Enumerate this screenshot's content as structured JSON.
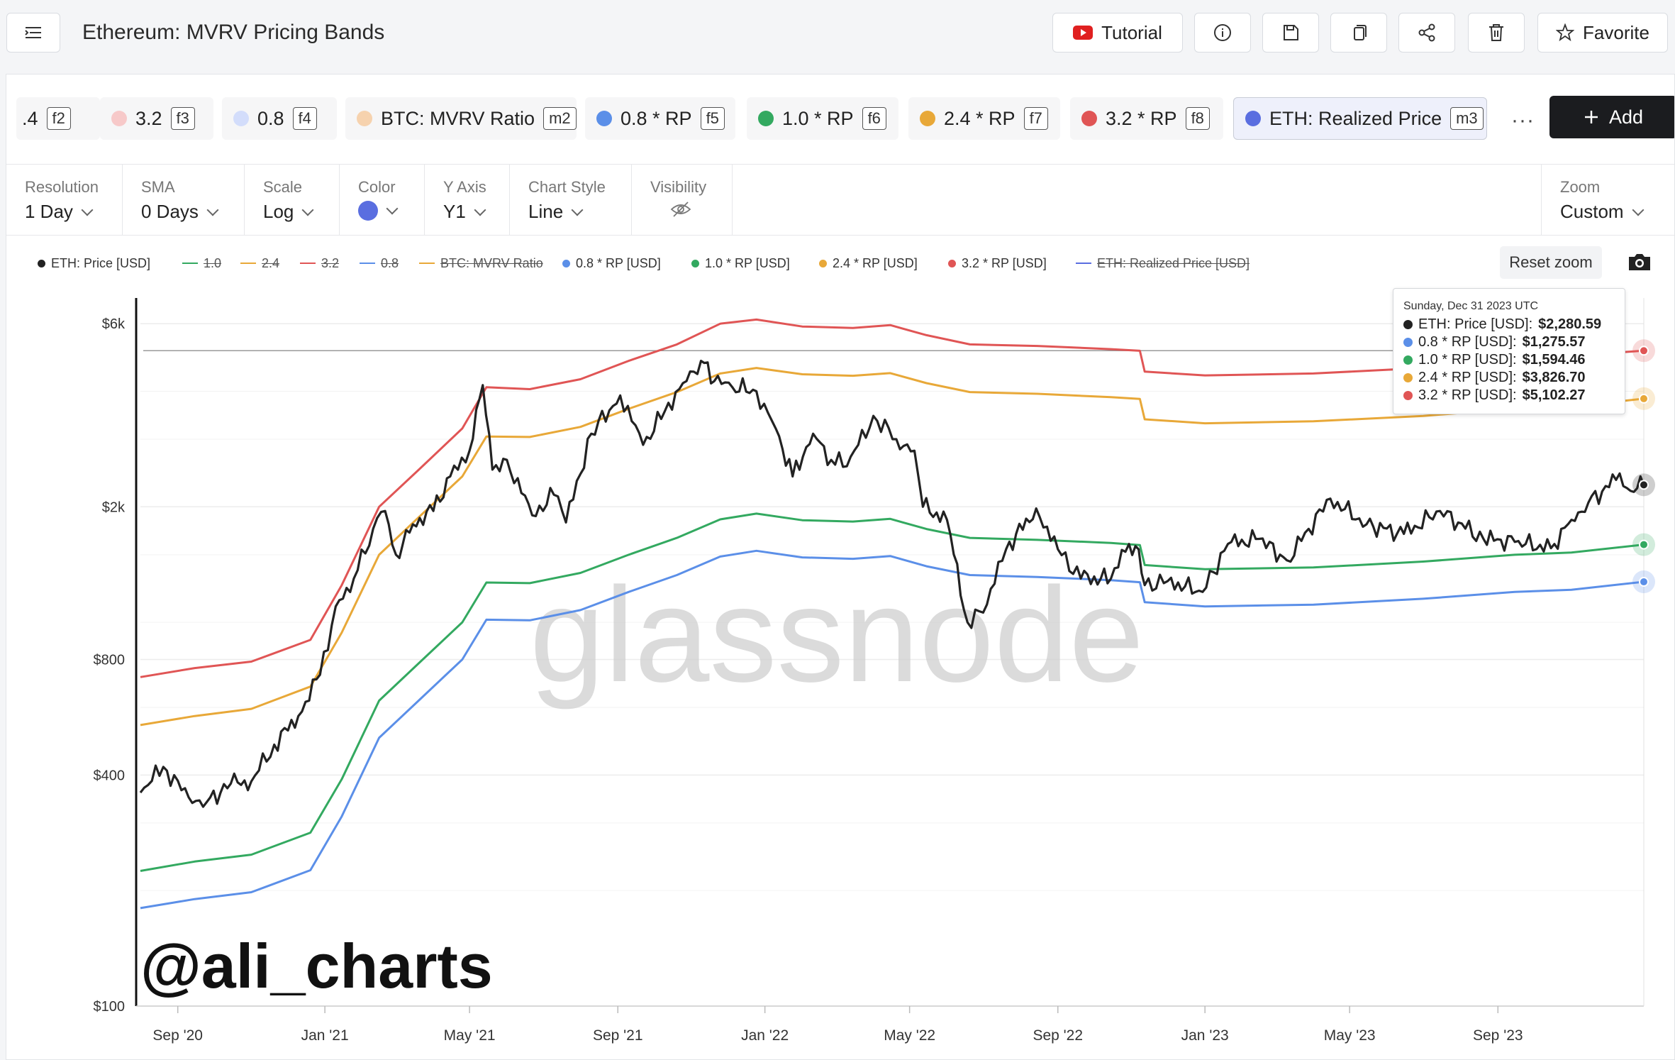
{
  "header": {
    "title": "Ethereum: MVRV Pricing Bands",
    "tutorial_label": "Tutorial",
    "favorite_label": "Favorite"
  },
  "metrics": [
    {
      "label": ".4",
      "key": "f2",
      "color": "#fbe2e2"
    },
    {
      "label": "3.2",
      "key": "f3",
      "color": "#f7c9c9"
    },
    {
      "label": "0.8",
      "key": "f4",
      "color": "#d3ddfb"
    },
    {
      "label": "BTC: MVRV Ratio",
      "key": "m2",
      "color": "#f6d2ae"
    },
    {
      "label": "0.8 * RP",
      "key": "f5",
      "color": "#5b8fe8"
    },
    {
      "label": "1.0 * RP",
      "key": "f6",
      "color": "#33a960"
    },
    {
      "label": "2.4 * RP",
      "key": "f7",
      "color": "#e8a838"
    },
    {
      "label": "3.2 * RP",
      "key": "f8",
      "color": "#e05555"
    },
    {
      "label": "ETH: Realized Price",
      "key": "m3",
      "color": "#5a6ee0"
    }
  ],
  "more_label": "···",
  "add_label": "Add",
  "controls": [
    {
      "label": "Resolution",
      "value": "1 Day"
    },
    {
      "label": "SMA",
      "value": "0 Days"
    },
    {
      "label": "Scale",
      "value": "Log"
    },
    {
      "label": "Color",
      "value": ""
    },
    {
      "label": "Y Axis",
      "value": "Y1"
    },
    {
      "label": "Chart Style",
      "value": "Line"
    },
    {
      "label": "Visibility",
      "value": ""
    },
    {
      "label": "Zoom",
      "value": "Custom"
    }
  ],
  "color_swatch": "#5a6ee0",
  "reset_zoom_label": "Reset zoom",
  "legend": [
    {
      "label": "ETH: Price [USD]",
      "color": "#222222",
      "active": true
    },
    {
      "label": "1.0",
      "color": "#33a960",
      "active": false
    },
    {
      "label": "2.4",
      "color": "#e8a838",
      "active": false
    },
    {
      "label": "3.2",
      "color": "#e05555",
      "active": false
    },
    {
      "label": "0.8",
      "color": "#5b8fe8",
      "active": false
    },
    {
      "label": "BTC: MVRV Ratio",
      "color": "#e8a838",
      "active": false
    },
    {
      "label": "0.8 * RP [USD]",
      "color": "#5b8fe8",
      "active": true
    },
    {
      "label": "1.0 * RP [USD]",
      "color": "#33a960",
      "active": true
    },
    {
      "label": "2.4 * RP [USD]",
      "color": "#e8a838",
      "active": true
    },
    {
      "label": "3.2 * RP [USD]",
      "color": "#e05555",
      "active": true
    },
    {
      "label": "ETH: Realized Price [USD]",
      "color": "#5a6ee0",
      "active": false
    }
  ],
  "tooltip": {
    "date": "Sunday, Dec 31 2023 UTC",
    "rows": [
      {
        "label": "ETH: Price [USD]: ",
        "value": "$2,280.59",
        "color": "#222222"
      },
      {
        "label": "0.8 * RP [USD]: ",
        "value": "$1,275.57",
        "color": "#5b8fe8"
      },
      {
        "label": "1.0 * RP [USD]: ",
        "value": "$1,594.46",
        "color": "#33a960"
      },
      {
        "label": "2.4 * RP [USD]: ",
        "value": "$3,826.70",
        "color": "#e8a838"
      },
      {
        "label": "3.2 * RP [USD]: ",
        "value": "$5,102.27",
        "color": "#e05555"
      }
    ]
  },
  "watermark": "glassnode",
  "overlay_text": "@ali_charts",
  "chart_data": {
    "type": "line",
    "title": "Ethereum: MVRV Pricing Bands",
    "yscale": "log",
    "ylim": [
      100,
      7000
    ],
    "xlim": [
      "2020-08-01",
      "2023-12-31"
    ],
    "y_ticks": [
      {
        "v": 100,
        "label": "$100"
      },
      {
        "v": 400,
        "label": "$400"
      },
      {
        "v": 800,
        "label": "$800"
      },
      {
        "v": 2000,
        "label": "$2k"
      },
      {
        "v": 6000,
        "label": "$6k"
      }
    ],
    "x_ticks": [
      {
        "date": "2020-09-01",
        "label": "Sep '20"
      },
      {
        "date": "2021-01-01",
        "label": "Jan '21"
      },
      {
        "date": "2021-05-01",
        "label": "May '21"
      },
      {
        "date": "2021-09-01",
        "label": "Sep '21"
      },
      {
        "date": "2022-01-01",
        "label": "Jan '22"
      },
      {
        "date": "2022-05-01",
        "label": "May '22"
      },
      {
        "date": "2022-09-01",
        "label": "Sep '22"
      },
      {
        "date": "2023-01-01",
        "label": "Jan '23"
      },
      {
        "date": "2023-05-01",
        "label": "May '23"
      },
      {
        "date": "2023-09-01",
        "label": "Sep '23"
      }
    ],
    "reference_line": 5102,
    "series": [
      {
        "name": "3.2 * RP [USD]",
        "color": "#e05555",
        "points": [
          [
            "2020-08-01",
            720
          ],
          [
            "2020-09-15",
            760
          ],
          [
            "2020-11-01",
            790
          ],
          [
            "2020-12-20",
            900
          ],
          [
            "2021-01-15",
            1250
          ],
          [
            "2021-02-15",
            2000
          ],
          [
            "2021-03-20",
            2500
          ],
          [
            "2021-04-25",
            3200
          ],
          [
            "2021-05-15",
            4100
          ],
          [
            "2021-06-20",
            4050
          ],
          [
            "2021-08-01",
            4300
          ],
          [
            "2021-09-10",
            4800
          ],
          [
            "2021-10-20",
            5300
          ],
          [
            "2021-11-25",
            6000
          ],
          [
            "2021-12-25",
            6150
          ],
          [
            "2022-02-01",
            5900
          ],
          [
            "2022-03-15",
            5850
          ],
          [
            "2022-04-15",
            5950
          ],
          [
            "2022-05-15",
            5600
          ],
          [
            "2022-06-20",
            5300
          ],
          [
            "2022-08-15",
            5250
          ],
          [
            "2022-10-15",
            5150
          ],
          [
            "2022-11-08",
            5100
          ],
          [
            "2022-11-12",
            4500
          ],
          [
            "2023-01-01",
            4400
          ],
          [
            "2023-04-01",
            4450
          ],
          [
            "2023-07-01",
            4600
          ],
          [
            "2023-09-15",
            4900
          ],
          [
            "2023-11-01",
            4950
          ],
          [
            "2023-12-31",
            5102
          ]
        ]
      },
      {
        "name": "2.4 * RP [USD]",
        "color": "#e8a838",
        "points": [
          [
            "2020-08-01",
            540
          ],
          [
            "2020-09-15",
            570
          ],
          [
            "2020-11-01",
            595
          ],
          [
            "2020-12-20",
            680
          ],
          [
            "2021-01-15",
            940
          ],
          [
            "2021-02-15",
            1500
          ],
          [
            "2021-03-20",
            1880
          ],
          [
            "2021-04-25",
            2400
          ],
          [
            "2021-05-15",
            3050
          ],
          [
            "2021-06-20",
            3040
          ],
          [
            "2021-08-01",
            3230
          ],
          [
            "2021-09-10",
            3600
          ],
          [
            "2021-10-20",
            3980
          ],
          [
            "2021-11-25",
            4450
          ],
          [
            "2021-12-25",
            4600
          ],
          [
            "2022-02-01",
            4430
          ],
          [
            "2022-03-15",
            4390
          ],
          [
            "2022-04-15",
            4460
          ],
          [
            "2022-05-15",
            4200
          ],
          [
            "2022-06-20",
            3980
          ],
          [
            "2022-08-15",
            3940
          ],
          [
            "2022-10-15",
            3860
          ],
          [
            "2022-11-08",
            3820
          ],
          [
            "2022-11-12",
            3380
          ],
          [
            "2023-01-01",
            3300
          ],
          [
            "2023-04-01",
            3340
          ],
          [
            "2023-07-01",
            3450
          ],
          [
            "2023-09-15",
            3600
          ],
          [
            "2023-11-01",
            3650
          ],
          [
            "2023-12-31",
            3826
          ]
        ]
      },
      {
        "name": "1.0 * RP [USD]",
        "color": "#33a960",
        "points": [
          [
            "2020-08-01",
            225
          ],
          [
            "2020-09-15",
            238
          ],
          [
            "2020-11-01",
            248
          ],
          [
            "2020-12-20",
            283
          ],
          [
            "2021-01-15",
            390
          ],
          [
            "2021-02-15",
            625
          ],
          [
            "2021-03-20",
            783
          ],
          [
            "2021-04-25",
            1000
          ],
          [
            "2021-05-15",
            1270
          ],
          [
            "2021-06-20",
            1265
          ],
          [
            "2021-08-01",
            1345
          ],
          [
            "2021-09-10",
            1500
          ],
          [
            "2021-10-20",
            1660
          ],
          [
            "2021-11-25",
            1855
          ],
          [
            "2021-12-25",
            1920
          ],
          [
            "2022-02-01",
            1845
          ],
          [
            "2022-03-15",
            1830
          ],
          [
            "2022-04-15",
            1860
          ],
          [
            "2022-05-15",
            1750
          ],
          [
            "2022-06-20",
            1660
          ],
          [
            "2022-08-15",
            1640
          ],
          [
            "2022-10-15",
            1610
          ],
          [
            "2022-11-08",
            1590
          ],
          [
            "2022-11-12",
            1410
          ],
          [
            "2023-01-01",
            1375
          ],
          [
            "2023-04-01",
            1390
          ],
          [
            "2023-07-01",
            1440
          ],
          [
            "2023-09-15",
            1500
          ],
          [
            "2023-11-01",
            1520
          ],
          [
            "2023-12-31",
            1594
          ]
        ]
      },
      {
        "name": "0.8 * RP [USD]",
        "color": "#5b8fe8",
        "points": [
          [
            "2020-08-01",
            180
          ],
          [
            "2020-09-15",
            190
          ],
          [
            "2020-11-01",
            198
          ],
          [
            "2020-12-20",
            226
          ],
          [
            "2021-01-15",
            312
          ],
          [
            "2021-02-15",
            500
          ],
          [
            "2021-03-20",
            626
          ],
          [
            "2021-04-25",
            800
          ],
          [
            "2021-05-15",
            1016
          ],
          [
            "2021-06-20",
            1012
          ],
          [
            "2021-08-01",
            1076
          ],
          [
            "2021-09-10",
            1200
          ],
          [
            "2021-10-20",
            1328
          ],
          [
            "2021-11-25",
            1484
          ],
          [
            "2021-12-25",
            1536
          ],
          [
            "2022-02-01",
            1476
          ],
          [
            "2022-03-15",
            1464
          ],
          [
            "2022-04-15",
            1488
          ],
          [
            "2022-05-15",
            1400
          ],
          [
            "2022-06-20",
            1328
          ],
          [
            "2022-08-15",
            1312
          ],
          [
            "2022-10-15",
            1288
          ],
          [
            "2022-11-08",
            1272
          ],
          [
            "2022-11-12",
            1128
          ],
          [
            "2023-01-01",
            1100
          ],
          [
            "2023-04-01",
            1112
          ],
          [
            "2023-07-01",
            1152
          ],
          [
            "2023-09-15",
            1200
          ],
          [
            "2023-11-01",
            1216
          ],
          [
            "2023-12-31",
            1275
          ]
        ]
      },
      {
        "name": "ETH: Price [USD]",
        "color": "#222222",
        "points": [
          [
            "2020-08-01",
            360
          ],
          [
            "2020-08-20",
            420
          ],
          [
            "2020-09-10",
            350
          ],
          [
            "2020-09-25",
            340
          ],
          [
            "2020-10-15",
            380
          ],
          [
            "2020-11-01",
            385
          ],
          [
            "2020-11-20",
            480
          ],
          [
            "2020-12-10",
            570
          ],
          [
            "2020-12-28",
            730
          ],
          [
            "2021-01-10",
            1100
          ],
          [
            "2021-01-25",
            1300
          ],
          [
            "2021-02-10",
            1750
          ],
          [
            "2021-02-20",
            1950
          ],
          [
            "2021-03-01",
            1500
          ],
          [
            "2021-03-15",
            1800
          ],
          [
            "2021-04-01",
            1950
          ],
          [
            "2021-04-15",
            2400
          ],
          [
            "2021-05-01",
            2800
          ],
          [
            "2021-05-12",
            4150
          ],
          [
            "2021-05-20",
            2500
          ],
          [
            "2021-06-01",
            2650
          ],
          [
            "2021-06-22",
            1900
          ],
          [
            "2021-07-10",
            2150
          ],
          [
            "2021-07-20",
            1820
          ],
          [
            "2021-08-10",
            3100
          ],
          [
            "2021-09-03",
            3900
          ],
          [
            "2021-09-22",
            2900
          ],
          [
            "2021-10-10",
            3550
          ],
          [
            "2021-10-25",
            4200
          ],
          [
            "2021-11-09",
            4800
          ],
          [
            "2021-11-20",
            4250
          ],
          [
            "2021-12-05",
            4100
          ],
          [
            "2021-12-25",
            4000
          ],
          [
            "2022-01-10",
            3200
          ],
          [
            "2022-01-24",
            2400
          ],
          [
            "2022-02-10",
            3100
          ],
          [
            "2022-02-25",
            2650
          ],
          [
            "2022-03-10",
            2550
          ],
          [
            "2022-04-01",
            3450
          ],
          [
            "2022-04-20",
            3000
          ],
          [
            "2022-05-05",
            2800
          ],
          [
            "2022-05-12",
            2000
          ],
          [
            "2022-06-01",
            1850
          ],
          [
            "2022-06-18",
            1000
          ],
          [
            "2022-07-01",
            1060
          ],
          [
            "2022-07-20",
            1550
          ],
          [
            "2022-08-14",
            1980
          ],
          [
            "2022-09-01",
            1550
          ],
          [
            "2022-09-20",
            1300
          ],
          [
            "2022-10-15",
            1300
          ],
          [
            "2022-10-30",
            1600
          ],
          [
            "2022-11-07",
            1550
          ],
          [
            "2022-11-12",
            1250
          ],
          [
            "2022-12-01",
            1280
          ],
          [
            "2022-12-30",
            1200
          ],
          [
            "2023-01-20",
            1600
          ],
          [
            "2023-02-15",
            1650
          ],
          [
            "2023-03-10",
            1450
          ],
          [
            "2023-04-15",
            2100
          ],
          [
            "2023-05-15",
            1800
          ],
          [
            "2023-06-15",
            1700
          ],
          [
            "2023-07-15",
            1950
          ],
          [
            "2023-08-20",
            1650
          ],
          [
            "2023-09-15",
            1620
          ],
          [
            "2023-10-15",
            1560
          ],
          [
            "2023-11-01",
            1850
          ],
          [
            "2023-11-15",
            2050
          ],
          [
            "2023-12-08",
            2350
          ],
          [
            "2023-12-20",
            2200
          ],
          [
            "2023-12-31",
            2281
          ]
        ]
      }
    ]
  }
}
